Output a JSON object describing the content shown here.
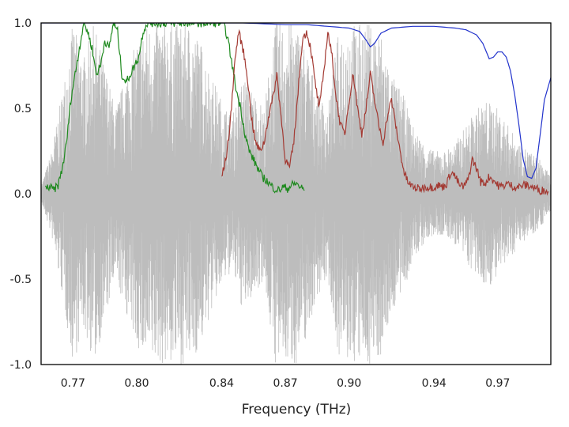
{
  "chart_data": {
    "type": "line",
    "title": "",
    "xlabel": "Frequency (THz)",
    "ylabel": "",
    "xlim": [
      0.755,
      0.995
    ],
    "ylim": [
      -1.0,
      1.0
    ],
    "x_ticks": [
      0.77,
      0.8,
      0.84,
      0.87,
      0.9,
      0.94,
      0.97
    ],
    "x_tick_labels": [
      "0.77",
      "0.80",
      "0.84",
      "0.87",
      "0.90",
      "0.94",
      "0.97"
    ],
    "y_ticks": [
      1.0,
      0.5,
      0.0,
      -0.5,
      -1.0
    ],
    "y_tick_labels": [
      "1.0",
      "0.5",
      "0.0",
      "-0.5",
      "-1.0"
    ],
    "grid": false,
    "legend": "none",
    "series": [
      {
        "color": "#bdbdbd",
        "style": "dense-oscillation",
        "x": [
          0.755,
          0.76,
          0.765,
          0.77,
          0.775,
          0.78,
          0.785,
          0.79,
          0.795,
          0.8,
          0.805,
          0.81,
          0.815,
          0.82,
          0.825,
          0.83,
          0.835,
          0.84,
          0.845,
          0.85,
          0.855,
          0.86,
          0.865,
          0.87,
          0.875,
          0.88,
          0.885,
          0.89,
          0.895,
          0.9,
          0.905,
          0.91,
          0.915,
          0.92,
          0.925,
          0.93,
          0.935,
          0.94,
          0.945,
          0.95,
          0.955,
          0.96,
          0.965,
          0.97,
          0.975,
          0.98,
          0.985,
          0.99,
          0.995
        ],
        "values": [
          0.05,
          0.25,
          0.6,
          1.0,
          0.8,
          1.0,
          0.75,
          0.5,
          0.7,
          0.9,
          1.0,
          1.0,
          1.0,
          1.0,
          1.0,
          0.9,
          0.7,
          0.55,
          0.45,
          0.7,
          0.6,
          0.5,
          1.0,
          1.0,
          1.0,
          0.85,
          0.6,
          0.5,
          0.95,
          1.0,
          1.0,
          1.0,
          0.95,
          0.7,
          0.6,
          0.4,
          0.3,
          0.25,
          0.25,
          0.3,
          0.4,
          0.5,
          0.55,
          0.5,
          0.4,
          0.3,
          0.25,
          0.2,
          0.1
        ]
      },
      {
        "color": "#1f8a1f",
        "x": [
          0.757,
          0.759,
          0.761,
          0.763,
          0.765,
          0.767,
          0.769,
          0.771,
          0.773,
          0.775,
          0.777,
          0.779,
          0.781,
          0.783,
          0.785,
          0.787,
          0.789,
          0.791,
          0.793,
          0.795,
          0.797,
          0.799,
          0.801,
          0.803,
          0.805,
          0.807,
          0.809,
          0.811,
          0.813,
          0.815,
          0.817,
          0.819,
          0.821,
          0.823,
          0.825,
          0.827,
          0.829,
          0.831,
          0.833,
          0.835,
          0.837,
          0.839,
          0.841,
          0.843,
          0.845,
          0.847,
          0.849,
          0.851,
          0.853,
          0.855,
          0.857,
          0.859,
          0.861,
          0.863,
          0.865,
          0.867,
          0.869,
          0.871,
          0.873,
          0.875,
          0.877,
          0.879
        ],
        "values": [
          0.03,
          0.04,
          0.02,
          0.05,
          0.15,
          0.3,
          0.55,
          0.7,
          0.85,
          1.0,
          0.95,
          0.85,
          0.7,
          0.75,
          0.9,
          0.85,
          1.0,
          0.95,
          0.7,
          0.65,
          0.7,
          0.75,
          0.8,
          0.95,
          1.0,
          1.0,
          1.0,
          1.0,
          1.0,
          1.0,
          1.0,
          1.0,
          1.0,
          1.0,
          1.0,
          1.0,
          1.0,
          1.0,
          1.0,
          1.0,
          1.0,
          1.0,
          1.0,
          0.9,
          0.75,
          0.6,
          0.5,
          0.35,
          0.25,
          0.2,
          0.15,
          0.1,
          0.08,
          0.05,
          0.03,
          0.02,
          0.04,
          0.03,
          0.05,
          0.06,
          0.04,
          0.02
        ]
      },
      {
        "color": "#a33a33",
        "x": [
          0.84,
          0.842,
          0.844,
          0.846,
          0.848,
          0.85,
          0.852,
          0.854,
          0.856,
          0.858,
          0.86,
          0.862,
          0.864,
          0.866,
          0.868,
          0.87,
          0.872,
          0.874,
          0.876,
          0.878,
          0.88,
          0.882,
          0.884,
          0.886,
          0.888,
          0.89,
          0.892,
          0.894,
          0.896,
          0.898,
          0.9,
          0.902,
          0.904,
          0.906,
          0.908,
          0.91,
          0.912,
          0.914,
          0.916,
          0.918,
          0.92,
          0.922,
          0.924,
          0.926,
          0.928,
          0.93,
          0.932,
          0.934,
          0.936,
          0.938,
          0.94,
          0.942,
          0.944,
          0.946,
          0.948,
          0.95,
          0.952,
          0.954,
          0.956,
          0.958,
          0.96,
          0.962,
          0.964,
          0.966,
          0.968,
          0.97,
          0.972,
          0.974,
          0.976,
          0.978,
          0.98,
          0.982,
          0.984,
          0.986,
          0.988,
          0.99,
          0.992,
          0.994
        ],
        "values": [
          0.1,
          0.2,
          0.4,
          0.75,
          0.95,
          0.85,
          0.7,
          0.45,
          0.3,
          0.25,
          0.3,
          0.45,
          0.55,
          0.7,
          0.45,
          0.2,
          0.15,
          0.3,
          0.6,
          0.9,
          0.95,
          0.85,
          0.65,
          0.5,
          0.7,
          0.95,
          0.8,
          0.55,
          0.4,
          0.35,
          0.55,
          0.7,
          0.5,
          0.35,
          0.5,
          0.7,
          0.55,
          0.4,
          0.3,
          0.45,
          0.55,
          0.4,
          0.25,
          0.12,
          0.06,
          0.04,
          0.03,
          0.03,
          0.04,
          0.04,
          0.04,
          0.05,
          0.04,
          0.06,
          0.13,
          0.1,
          0.05,
          0.04,
          0.08,
          0.2,
          0.15,
          0.07,
          0.06,
          0.1,
          0.08,
          0.05,
          0.04,
          0.06,
          0.05,
          0.04,
          0.04,
          0.05,
          0.05,
          0.04,
          0.03,
          0.02,
          0.02,
          0.01
        ]
      },
      {
        "color": "#2233cc",
        "x": [
          0.755,
          0.8,
          0.85,
          0.87,
          0.88,
          0.89,
          0.9,
          0.905,
          0.908,
          0.91,
          0.912,
          0.915,
          0.92,
          0.93,
          0.94,
          0.95,
          0.955,
          0.96,
          0.963,
          0.966,
          0.968,
          0.97,
          0.972,
          0.974,
          0.976,
          0.978,
          0.98,
          0.982,
          0.984,
          0.986,
          0.988,
          0.99,
          0.992,
          0.995
        ],
        "values": [
          1.0,
          1.0,
          1.0,
          0.99,
          0.99,
          0.98,
          0.97,
          0.95,
          0.9,
          0.86,
          0.88,
          0.94,
          0.97,
          0.98,
          0.98,
          0.97,
          0.96,
          0.93,
          0.88,
          0.79,
          0.8,
          0.83,
          0.83,
          0.8,
          0.72,
          0.58,
          0.4,
          0.2,
          0.1,
          0.09,
          0.15,
          0.35,
          0.55,
          0.68
        ]
      }
    ]
  }
}
